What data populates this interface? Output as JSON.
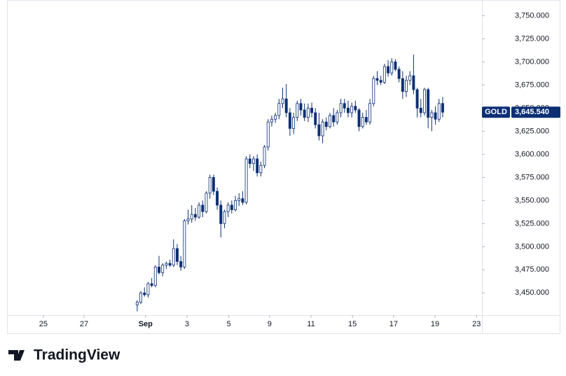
{
  "chart_data": {
    "type": "candlestick",
    "symbol": "GOLD",
    "last_price": {
      "value": 3645.54,
      "label": "3,645.540"
    },
    "brand": "TradingView",
    "up_color": "#ffffff",
    "down_color": "#0c2f74",
    "border_color": "#0c2f74",
    "x": [
      28,
      29,
      30,
      31,
      32,
      33,
      34,
      35,
      36,
      37,
      38,
      39,
      40,
      41,
      42,
      43,
      44,
      45,
      46,
      47,
      48,
      49,
      50,
      51,
      52,
      53,
      54,
      55,
      56,
      57,
      58,
      59,
      60,
      61,
      62,
      63,
      64,
      65,
      66,
      67,
      68,
      69,
      70,
      71,
      72,
      73,
      74,
      75,
      76,
      77,
      78,
      79,
      80,
      81,
      82,
      83,
      84,
      85,
      86,
      87,
      88,
      89,
      90,
      91,
      92,
      93,
      94,
      95,
      96,
      97,
      98,
      99,
      100,
      101,
      102,
      103,
      104,
      105,
      106,
      107,
      108,
      109,
      110,
      111,
      112
    ],
    "open": [
      3437,
      3440,
      3450,
      3448,
      3460,
      3458,
      3478,
      3472,
      3480,
      3482,
      3480,
      3498,
      3484,
      3478,
      3528,
      3530,
      3535,
      3532,
      3545,
      3538,
      3558,
      3575,
      3560,
      3545,
      3525,
      3538,
      3545,
      3540,
      3550,
      3552,
      3548,
      3595,
      3590,
      3595,
      3580,
      3588,
      3608,
      3635,
      3638,
      3642,
      3655,
      3660,
      3645,
      3628,
      3640,
      3655,
      3648,
      3640,
      3650,
      3645,
      3632,
      3620,
      3635,
      3630,
      3642,
      3635,
      3645,
      3655,
      3650,
      3645,
      3652,
      3648,
      3630,
      3640,
      3635,
      3655,
      3682,
      3680,
      3678,
      3695,
      3688,
      3700,
      3692,
      3682,
      3668,
      3680,
      3685,
      3670,
      3650,
      3645,
      3670,
      3640,
      3645,
      3638,
      3655
    ],
    "high": [
      3442,
      3452,
      3456,
      3462,
      3466,
      3480,
      3490,
      3482,
      3484,
      3486,
      3508,
      3503,
      3490,
      3530,
      3540,
      3545,
      3542,
      3548,
      3550,
      3560,
      3578,
      3578,
      3564,
      3550,
      3540,
      3548,
      3550,
      3555,
      3558,
      3560,
      3598,
      3600,
      3598,
      3600,
      3592,
      3610,
      3638,
      3642,
      3645,
      3660,
      3672,
      3676,
      3650,
      3645,
      3658,
      3660,
      3655,
      3655,
      3656,
      3650,
      3645,
      3638,
      3640,
      3645,
      3650,
      3648,
      3660,
      3660,
      3658,
      3656,
      3658,
      3650,
      3645,
      3648,
      3660,
      3685,
      3690,
      3685,
      3698,
      3702,
      3704,
      3703,
      3695,
      3690,
      3685,
      3690,
      3708,
      3672,
      3660,
      3672,
      3672,
      3648,
      3652,
      3660,
      3662
    ],
    "low": [
      3430,
      3438,
      3446,
      3445,
      3456,
      3456,
      3470,
      3468,
      3476,
      3478,
      3478,
      3480,
      3474,
      3476,
      3524,
      3526,
      3528,
      3530,
      3532,
      3536,
      3552,
      3556,
      3540,
      3510,
      3520,
      3532,
      3536,
      3538,
      3544,
      3545,
      3546,
      3585,
      3582,
      3576,
      3576,
      3585,
      3604,
      3630,
      3634,
      3638,
      3650,
      3640,
      3620,
      3622,
      3636,
      3642,
      3636,
      3635,
      3640,
      3628,
      3615,
      3612,
      3626,
      3628,
      3630,
      3632,
      3640,
      3645,
      3640,
      3640,
      3645,
      3625,
      3628,
      3632,
      3632,
      3652,
      3675,
      3675,
      3676,
      3684,
      3685,
      3690,
      3678,
      3660,
      3662,
      3675,
      3665,
      3640,
      3640,
      3642,
      3628,
      3625,
      3632,
      3635,
      3640
    ],
    "close": [
      3440,
      3450,
      3448,
      3460,
      3458,
      3478,
      3472,
      3480,
      3482,
      3480,
      3498,
      3484,
      3478,
      3528,
      3530,
      3535,
      3532,
      3545,
      3538,
      3558,
      3575,
      3560,
      3545,
      3525,
      3538,
      3545,
      3540,
      3550,
      3552,
      3548,
      3595,
      3590,
      3595,
      3580,
      3588,
      3608,
      3635,
      3638,
      3642,
      3655,
      3660,
      3645,
      3628,
      3640,
      3655,
      3648,
      3640,
      3650,
      3645,
      3632,
      3620,
      3635,
      3630,
      3642,
      3635,
      3645,
      3655,
      3650,
      3645,
      3652,
      3648,
      3630,
      3640,
      3635,
      3655,
      3682,
      3680,
      3678,
      3695,
      3688,
      3700,
      3692,
      3682,
      3668,
      3680,
      3685,
      3670,
      3650,
      3645,
      3670,
      3640,
      3645,
      3638,
      3655,
      3645.54
    ],
    "xlim": [
      -7.8,
      122.8
    ],
    "xticks": [
      {
        "value": 2.2,
        "label": "25"
      },
      {
        "value": 13.4,
        "label": "27"
      },
      {
        "value": 30.3,
        "label": "Sep"
      },
      {
        "value": 41.7,
        "label": "3"
      },
      {
        "value": 53.2,
        "label": "5"
      },
      {
        "value": 64.4,
        "label": "9"
      },
      {
        "value": 75.8,
        "label": "11"
      },
      {
        "value": 87.2,
        "label": "15"
      },
      {
        "value": 98.5,
        "label": "17"
      },
      {
        "value": 109.9,
        "label": "19"
      },
      {
        "value": 121.3,
        "label": "23"
      }
    ],
    "ylim": [
      3426,
      3767
    ],
    "yticks": [
      {
        "value": 3450,
        "label": "3,450.000"
      },
      {
        "value": 3475,
        "label": "3,475.000"
      },
      {
        "value": 3500,
        "label": "3,500.000"
      },
      {
        "value": 3525,
        "label": "3,525.000"
      },
      {
        "value": 3550,
        "label": "3,550.000"
      },
      {
        "value": 3575,
        "label": "3,575.000"
      },
      {
        "value": 3600,
        "label": "3,600.000"
      },
      {
        "value": 3625,
        "label": "3,625.000"
      },
      {
        "value": 3650,
        "label": "3,650.000"
      },
      {
        "value": 3675,
        "label": "3,675.000"
      },
      {
        "value": 3700,
        "label": "3,700.000"
      },
      {
        "value": 3725,
        "label": "3,725.000"
      },
      {
        "value": 3750,
        "label": "3,750.000"
      }
    ]
  }
}
